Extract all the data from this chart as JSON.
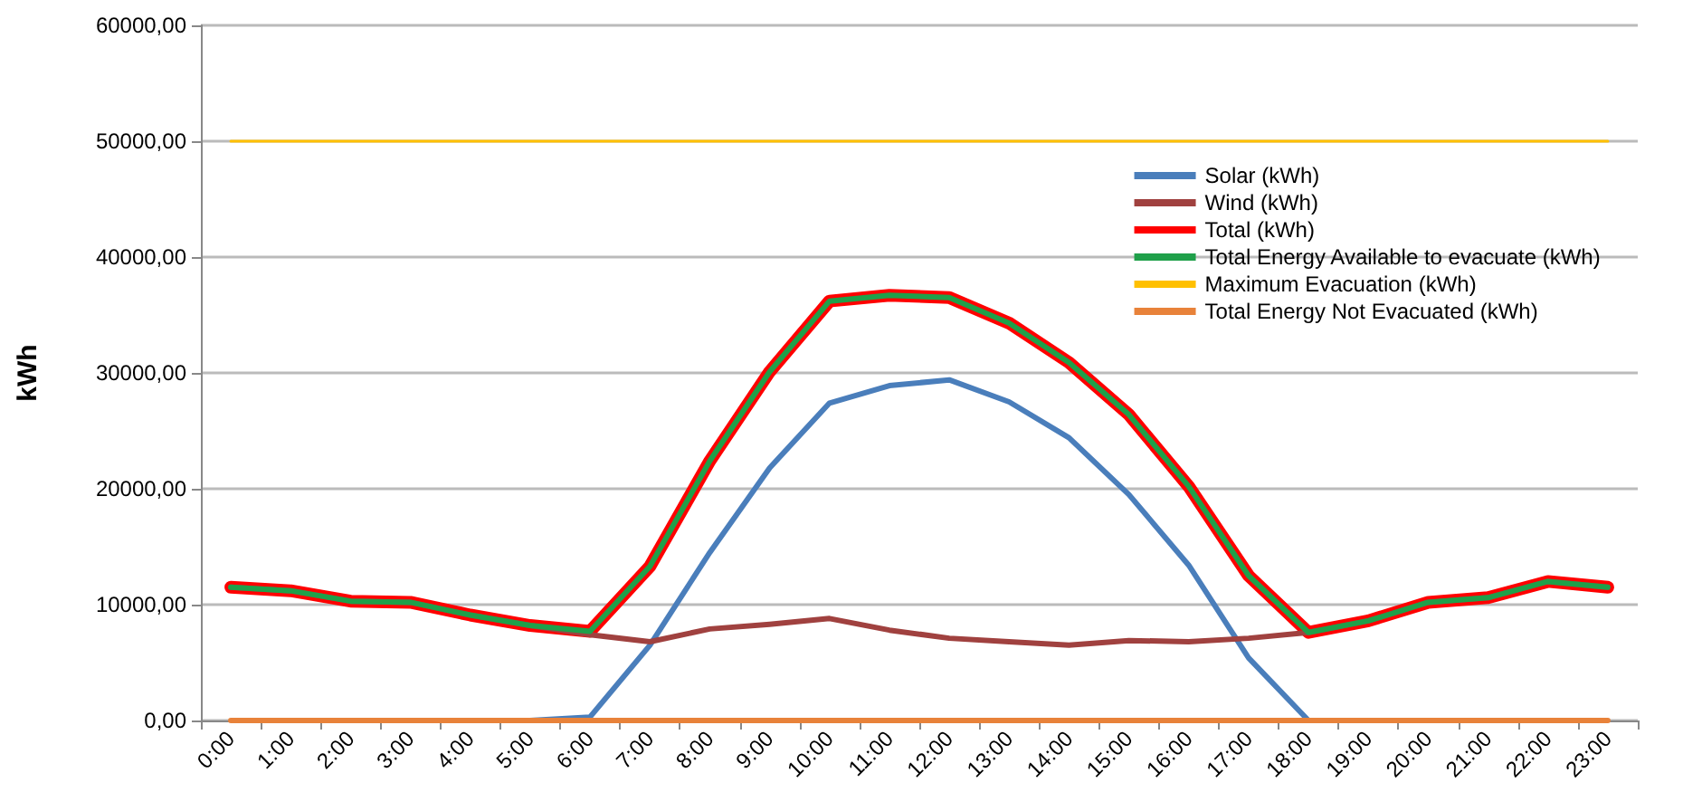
{
  "chart_data": {
    "type": "line",
    "ylabel": "kWh",
    "categories": [
      "0:00",
      "1:00",
      "2:00",
      "3:00",
      "4:00",
      "5:00",
      "6:00",
      "7:00",
      "8:00",
      "9:00",
      "10:00",
      "11:00",
      "12:00",
      "13:00",
      "14:00",
      "15:00",
      "16:00",
      "17:00",
      "18:00",
      "19:00",
      "20:00",
      "21:00",
      "22:00",
      "23:00"
    ],
    "series": [
      {
        "name": "Solar (kWh)",
        "color": "#4a7ebb",
        "values": [
          null,
          null,
          null,
          null,
          null,
          0,
          300,
          6500,
          14500,
          21800,
          27400,
          28900,
          29400,
          27500,
          24400,
          19500,
          13400,
          5400,
          0,
          null,
          null,
          null,
          null,
          null
        ]
      },
      {
        "name": "Wind (kWh)",
        "color": "#a0413f",
        "values": [
          11500,
          11200,
          10300,
          10200,
          9100,
          8200,
          7400,
          6800,
          7900,
          8300,
          8800,
          7800,
          7100,
          6800,
          6500,
          6900,
          6800,
          7100,
          7600,
          8600,
          10200,
          10600,
          12000,
          11500
        ]
      },
      {
        "name": "Total (kWh)",
        "color": "#ff0000",
        "values": [
          11500,
          11200,
          10300,
          10200,
          9100,
          8200,
          7700,
          13300,
          22400,
          30100,
          36200,
          36700,
          36500,
          34300,
          30900,
          26400,
          20200,
          12500,
          7600,
          8600,
          10200,
          10600,
          12000,
          11500
        ]
      },
      {
        "name": "Total Energy Available to evacuate (kWh)",
        "color": "#1fa04a",
        "values": [
          11500,
          11200,
          10300,
          10200,
          9100,
          8200,
          7700,
          13300,
          22400,
          30100,
          36200,
          36700,
          36500,
          34300,
          30900,
          26400,
          20200,
          12500,
          7600,
          8600,
          10200,
          10600,
          12000,
          11500
        ]
      },
      {
        "name": "Maximum Evacuation (kWh)",
        "color": "#ffc000",
        "values": [
          50000,
          50000,
          50000,
          50000,
          50000,
          50000,
          50000,
          50000,
          50000,
          50000,
          50000,
          50000,
          50000,
          50000,
          50000,
          50000,
          50000,
          50000,
          50000,
          50000,
          50000,
          50000,
          50000,
          50000
        ]
      },
      {
        "name": "Total Energy Not Evacuated (kWh)",
        "color": "#e8823a",
        "values": [
          0,
          0,
          0,
          0,
          0,
          0,
          0,
          0,
          0,
          0,
          0,
          0,
          0,
          0,
          0,
          0,
          0,
          0,
          0,
          0,
          0,
          0,
          0,
          0
        ]
      }
    ],
    "ylim": [
      0,
      60000
    ],
    "yticks": [
      {
        "value": 0,
        "label": "0,00"
      },
      {
        "value": 10000,
        "label": "10000,00"
      },
      {
        "value": 20000,
        "label": "20000,00"
      },
      {
        "value": 30000,
        "label": "30000,00"
      },
      {
        "value": 40000,
        "label": "40000,00"
      },
      {
        "value": 50000,
        "label": "50000,00"
      },
      {
        "value": 60000,
        "label": "60000,00"
      }
    ],
    "grid": "y",
    "legend": "top right",
    "marker": "none",
    "line_style": "solid"
  }
}
